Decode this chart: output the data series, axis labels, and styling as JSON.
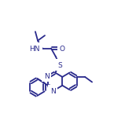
{
  "background": "#ffffff",
  "bond_color": "#2a2a8c",
  "lw": 1.3,
  "fs": 6.5,
  "b": 0.068
}
